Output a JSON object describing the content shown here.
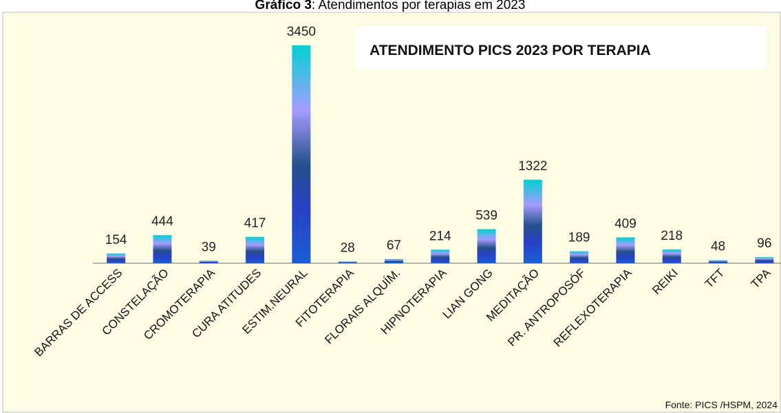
{
  "chart_data": {
    "type": "bar",
    "caption_label": "Gráfico 3",
    "caption_text": ": Atendimentos por terapias em 2023",
    "title": "ATENDIMENTO PICS 2023 POR TERAPIA",
    "source": "Fonte: PICS /HSPM, 2024",
    "categories": [
      "BARRAS DE ACCESS",
      "CONSTELAÇÃO",
      "CROMOTERAPIA",
      "CURA ATITUDES",
      "ESTIM.NEURAL",
      "FITOTERAPIA",
      "FLORAIS ALQUÍM.",
      "HIPNOTERAPIA",
      "LIAN GONG",
      "MEDITAÇÃO",
      "PR. ANTROPOSÓF",
      "REFLEXOTERAPIA",
      "REIKI",
      "TFT",
      "TPA"
    ],
    "values": [
      154,
      444,
      39,
      417,
      3450,
      28,
      67,
      214,
      539,
      1322,
      189,
      409,
      218,
      48,
      96
    ],
    "colors": [
      "#1a5fd6",
      "#2a3fc8",
      "#24508a",
      "#a59cff",
      "#00d2d2"
    ]
  }
}
